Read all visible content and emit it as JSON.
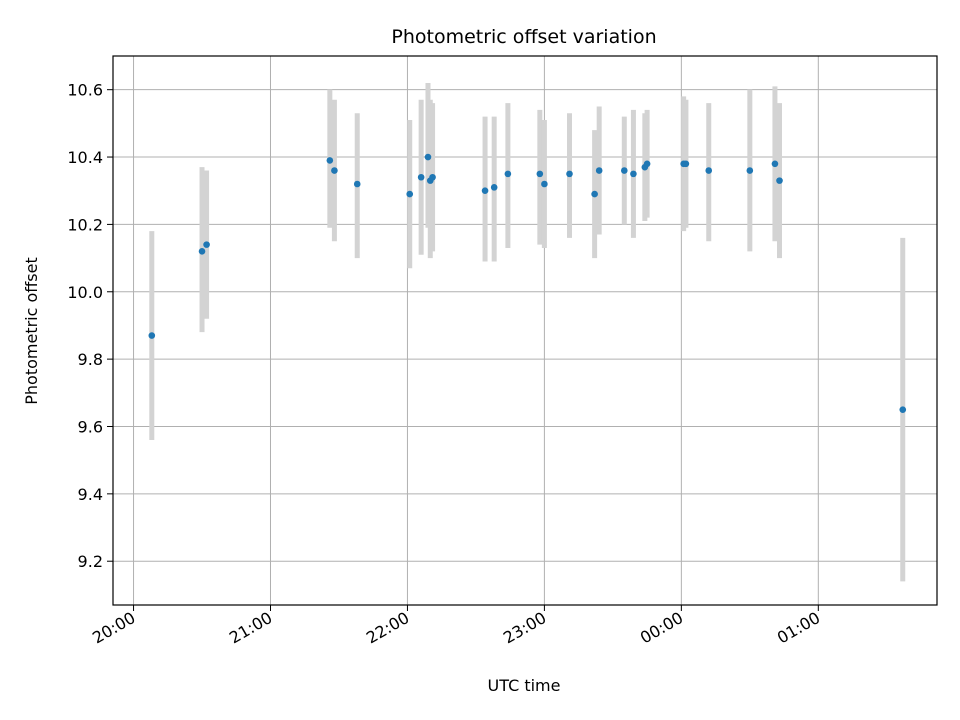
{
  "chart_data": {
    "type": "scatter",
    "title": "Photometric offset variation",
    "xlabel": "UTC time",
    "ylabel": "Photometric offset",
    "x_axis": {
      "kind": "time",
      "start": "19:51",
      "end": "01:52",
      "ticks": [
        "20:00",
        "21:00",
        "22:00",
        "23:00",
        "00:00",
        "01:00"
      ]
    },
    "ylim": [
      9.07,
      10.7
    ],
    "yticks": [
      9.2,
      9.4,
      9.6,
      9.8,
      10.0,
      10.2,
      10.4,
      10.6
    ],
    "grid": true,
    "colors": {
      "marker": "#1f77b4",
      "errorbar": "#d3d3d3",
      "grid": "#b0b0b0"
    },
    "series": [
      {
        "points": [
          {
            "time": "20:08",
            "value": 9.87,
            "low": 9.56,
            "high": 10.18
          },
          {
            "time": "20:30",
            "value": 10.12,
            "low": 9.88,
            "high": 10.37
          },
          {
            "time": "20:32",
            "value": 10.14,
            "low": 9.92,
            "high": 10.36
          },
          {
            "time": "21:26",
            "value": 10.39,
            "low": 10.19,
            "high": 10.6
          },
          {
            "time": "21:28",
            "value": 10.36,
            "low": 10.15,
            "high": 10.57
          },
          {
            "time": "21:38",
            "value": 10.32,
            "low": 10.1,
            "high": 10.53
          },
          {
            "time": "22:01",
            "value": 10.29,
            "low": 10.07,
            "high": 10.51
          },
          {
            "time": "22:06",
            "value": 10.34,
            "low": 10.11,
            "high": 10.57
          },
          {
            "time": "22:09",
            "value": 10.4,
            "low": 10.19,
            "high": 10.62
          },
          {
            "time": "22:10",
            "value": 10.33,
            "low": 10.1,
            "high": 10.57
          },
          {
            "time": "22:11",
            "value": 10.34,
            "low": 10.12,
            "high": 10.56
          },
          {
            "time": "22:34",
            "value": 10.3,
            "low": 10.09,
            "high": 10.52
          },
          {
            "time": "22:38",
            "value": 10.31,
            "low": 10.09,
            "high": 10.52
          },
          {
            "time": "22:44",
            "value": 10.35,
            "low": 10.13,
            "high": 10.56
          },
          {
            "time": "22:58",
            "value": 10.35,
            "low": 10.14,
            "high": 10.54
          },
          {
            "time": "23:00",
            "value": 10.32,
            "low": 10.13,
            "high": 10.51
          },
          {
            "time": "23:11",
            "value": 10.35,
            "low": 10.16,
            "high": 10.53
          },
          {
            "time": "23:22",
            "value": 10.29,
            "low": 10.1,
            "high": 10.48
          },
          {
            "time": "23:24",
            "value": 10.36,
            "low": 10.17,
            "high": 10.55
          },
          {
            "time": "23:35",
            "value": 10.36,
            "low": 10.2,
            "high": 10.52
          },
          {
            "time": "23:39",
            "value": 10.35,
            "low": 10.16,
            "high": 10.54
          },
          {
            "time": "23:44",
            "value": 10.37,
            "low": 10.21,
            "high": 10.53
          },
          {
            "time": "23:45",
            "value": 10.38,
            "low": 10.22,
            "high": 10.54
          },
          {
            "time": "00:01",
            "value": 10.38,
            "low": 10.18,
            "high": 10.58
          },
          {
            "time": "00:02",
            "value": 10.38,
            "low": 10.19,
            "high": 10.57
          },
          {
            "time": "00:12",
            "value": 10.36,
            "low": 10.15,
            "high": 10.56
          },
          {
            "time": "00:30",
            "value": 10.36,
            "low": 10.12,
            "high": 10.6
          },
          {
            "time": "00:41",
            "value": 10.38,
            "low": 10.15,
            "high": 10.61
          },
          {
            "time": "00:43",
            "value": 10.33,
            "low": 10.1,
            "high": 10.56
          },
          {
            "time": "01:37",
            "value": 9.65,
            "low": 9.14,
            "high": 10.16
          }
        ]
      }
    ]
  }
}
